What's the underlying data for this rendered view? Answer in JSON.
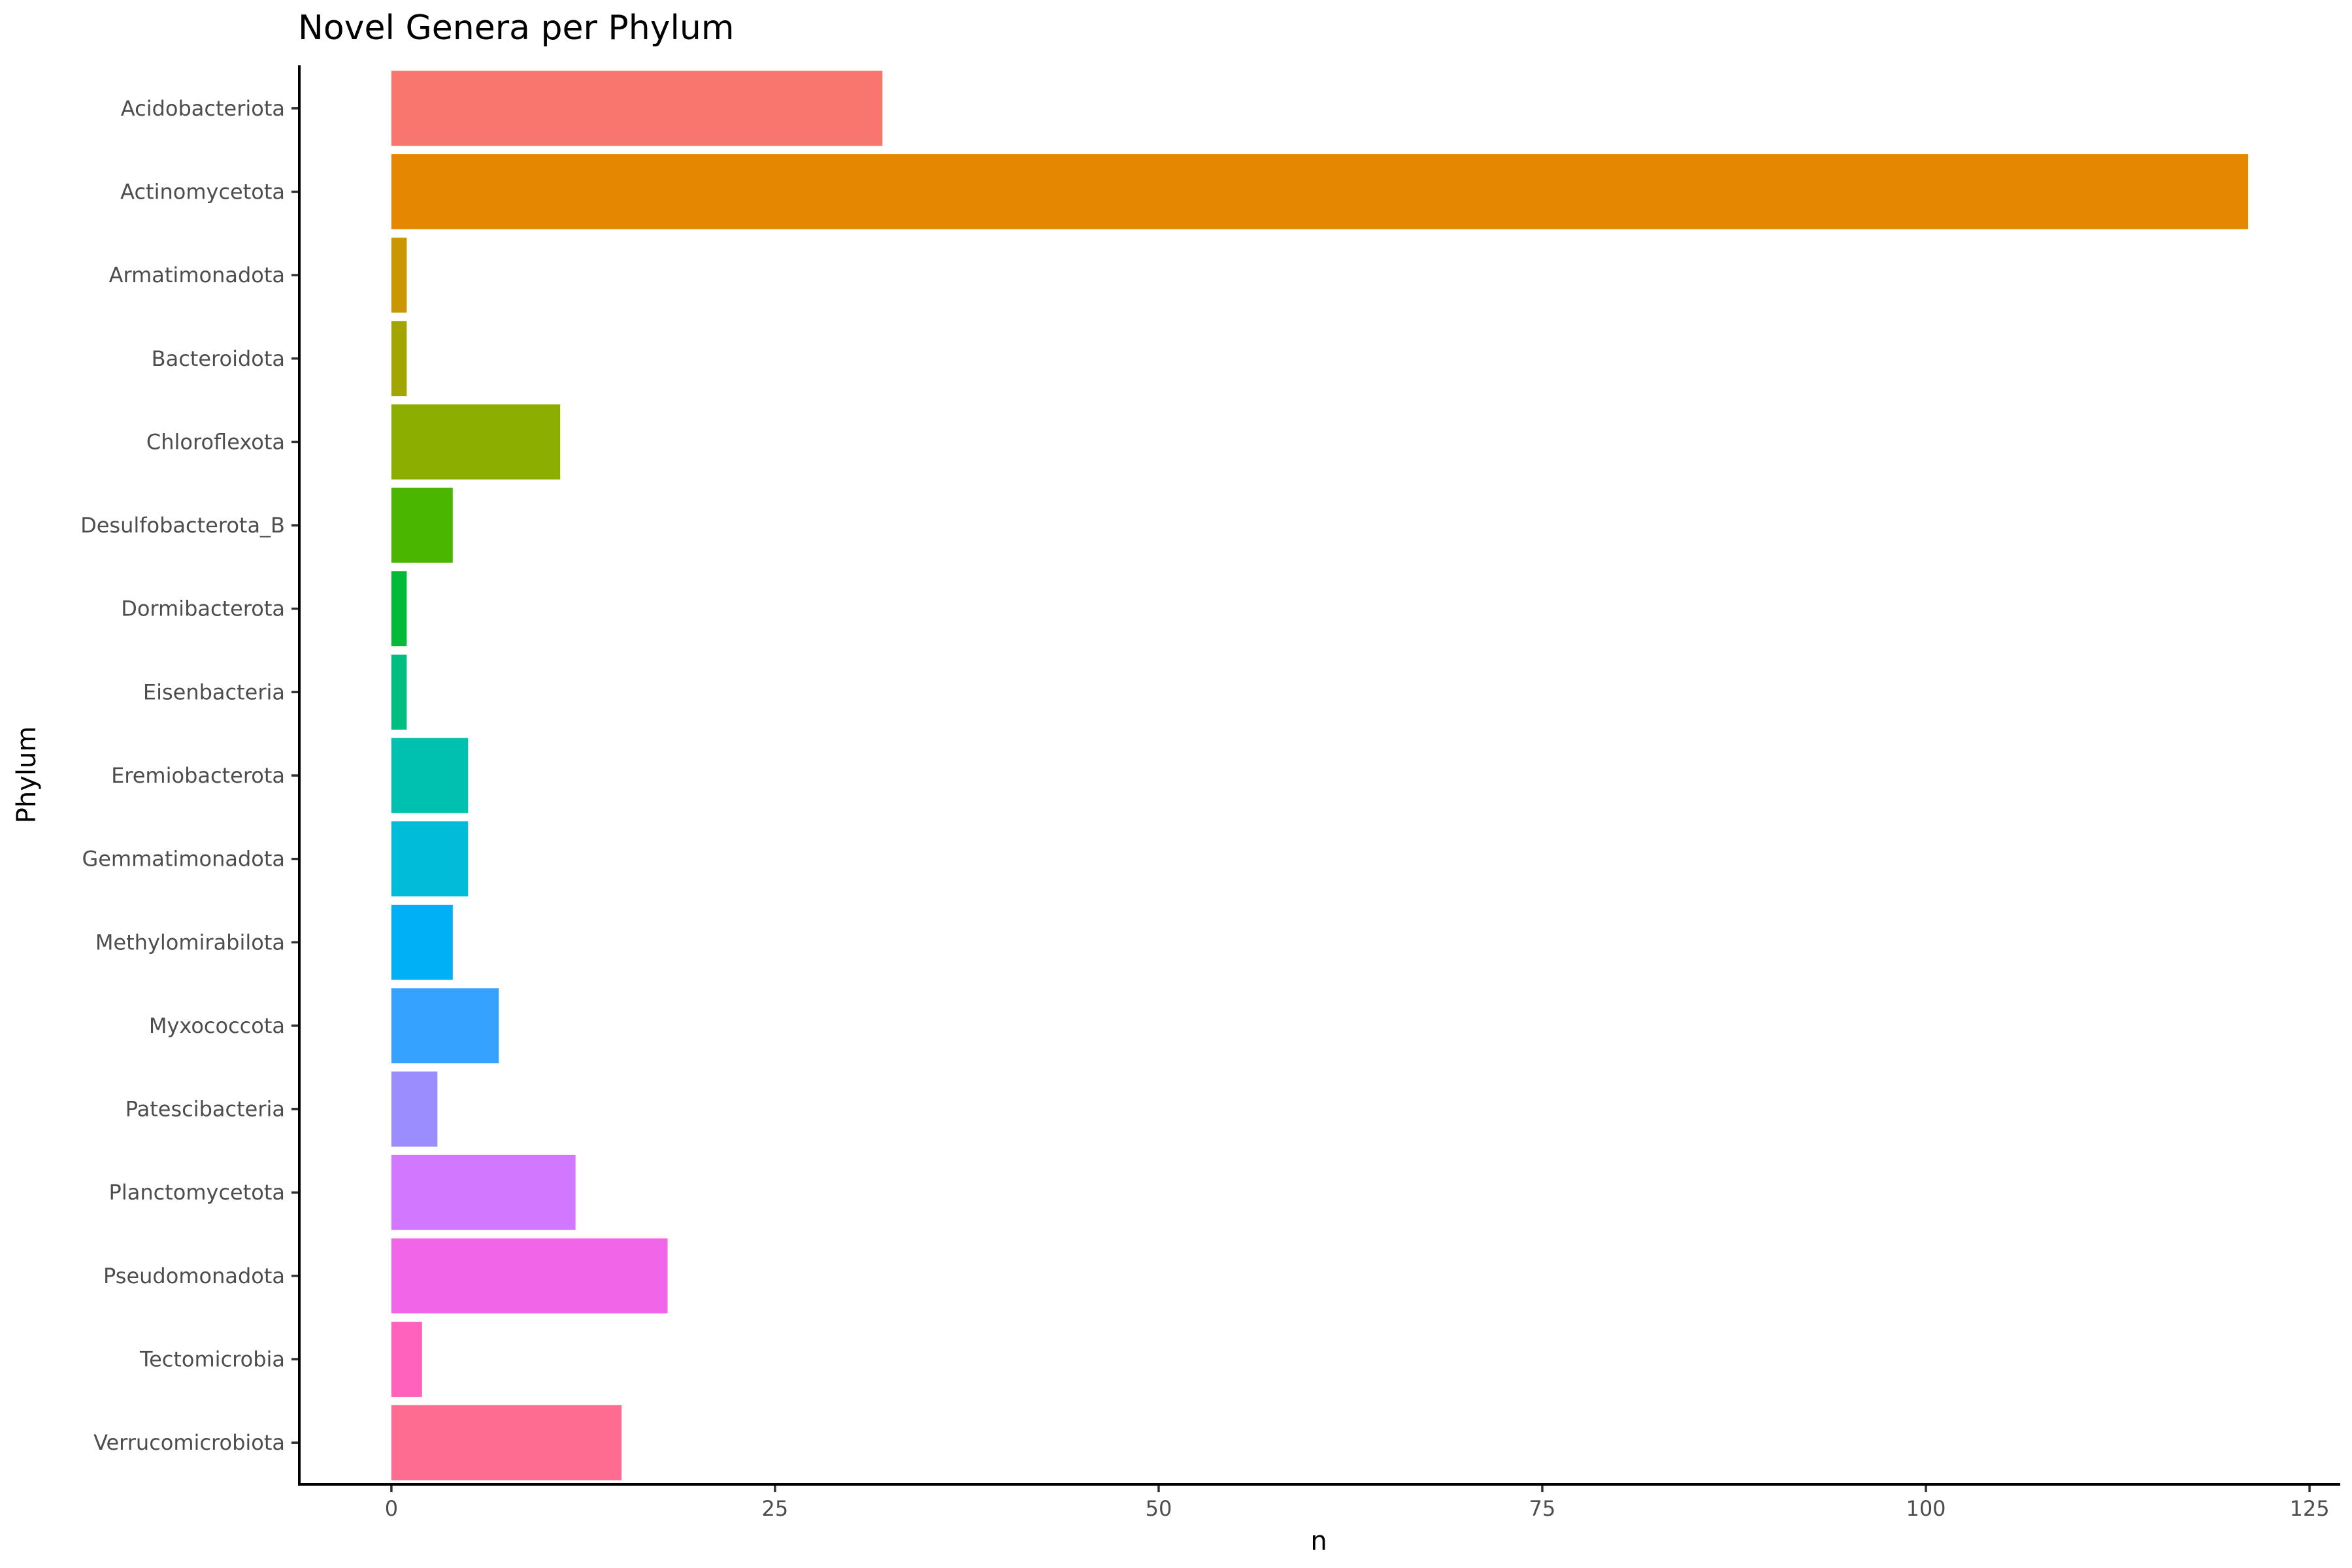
{
  "chart_data": {
    "type": "bar",
    "orientation": "horizontal",
    "title": "Novel Genera per Phylum",
    "xlabel": "n",
    "ylabel": "Phylum",
    "xlim": [
      -6,
      127
    ],
    "xticks": [
      0,
      25,
      50,
      75,
      100,
      125
    ],
    "grid": false,
    "legend": "none",
    "bars": [
      {
        "category": "Acidobacteriota",
        "value": 32,
        "color": "#F8766D"
      },
      {
        "category": "Actinomycetota",
        "value": 121,
        "color": "#E58700"
      },
      {
        "category": "Armatimonadota",
        "value": 1,
        "color": "#C99800"
      },
      {
        "category": "Bacteroidota",
        "value": 1,
        "color": "#A3A500"
      },
      {
        "category": "Chloroflexota",
        "value": 11,
        "color": "#8BAE00"
      },
      {
        "category": "Desulfobacterota_B",
        "value": 4,
        "color": "#4AB600"
      },
      {
        "category": "Dormibacterota",
        "value": 1,
        "color": "#00BA38"
      },
      {
        "category": "Eisenbacteria",
        "value": 1,
        "color": "#00BE80"
      },
      {
        "category": "Eremiobacterota",
        "value": 5,
        "color": "#00C0AF"
      },
      {
        "category": "Gemmatimonadota",
        "value": 5,
        "color": "#00BCD8"
      },
      {
        "category": "Methylomirabilota",
        "value": 4,
        "color": "#00B0F6"
      },
      {
        "category": "Myxococcota",
        "value": 7,
        "color": "#35A2FF"
      },
      {
        "category": "Patescibacteria",
        "value": 3,
        "color": "#9C8DFF"
      },
      {
        "category": "Planctomycetota",
        "value": 12,
        "color": "#D277FF"
      },
      {
        "category": "Pseudomonadota",
        "value": 18,
        "color": "#F166E8"
      },
      {
        "category": "Tectomicrobia",
        "value": 2,
        "color": "#FF62BC"
      },
      {
        "category": "Verrucomicrobiota",
        "value": 15,
        "color": "#FF6C91"
      }
    ]
  }
}
